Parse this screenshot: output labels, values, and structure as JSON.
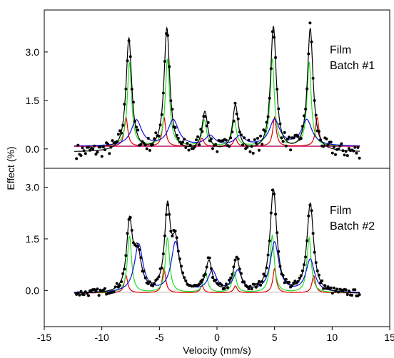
{
  "chart_data": {
    "type": "line",
    "x_axis": {
      "label": "Velocity (mm/s)",
      "lim": [
        -15,
        15
      ],
      "ticks": [
        -15,
        -10,
        -5,
        0,
        5,
        10,
        15
      ],
      "tick_labels": [
        "-15",
        "-10",
        "-5",
        "0",
        "5",
        "10",
        "15"
      ]
    },
    "y_axis": {
      "label": "Effect (%)",
      "ticks": [
        0.0,
        1.5,
        3.0
      ],
      "tick_labels": [
        "0.0",
        "1.5",
        "3.0"
      ]
    },
    "grid": false,
    "colors": {
      "data": "#000000",
      "fit": "#000000",
      "baseline": "#b4b4b4",
      "red": "#e00000",
      "green": "#22dd22",
      "blue": "#1010e0",
      "magenta": "#d0006a"
    },
    "panels": [
      {
        "label_lines": [
          "Film",
          "Batch #1"
        ],
        "ylim": [
          -0.6,
          4.3
        ],
        "baseline": 0.1,
        "components": [
          {
            "color": "red",
            "peaks": [
              {
                "x": -7.9,
                "a": 0.9,
                "w": 0.18
              },
              {
                "x": -4.6,
                "a": 0.9,
                "w": 0.18
              },
              {
                "x": -1.3,
                "a": 0.25,
                "w": 0.18
              },
              {
                "x": 1.6,
                "a": 0.25,
                "w": 0.18
              },
              {
                "x": 5.0,
                "a": 0.9,
                "w": 0.18
              },
              {
                "x": 8.7,
                "a": 0.9,
                "w": 0.18
              }
            ]
          },
          {
            "color": "green",
            "peaks": [
              {
                "x": -7.6,
                "a": 2.6,
                "w": 0.22
              },
              {
                "x": -4.3,
                "a": 2.7,
                "w": 0.22
              },
              {
                "x": -1.1,
                "a": 0.8,
                "w": 0.22
              },
              {
                "x": 1.5,
                "a": 0.8,
                "w": 0.22
              },
              {
                "x": 4.8,
                "a": 2.7,
                "w": 0.22
              },
              {
                "x": 8.0,
                "a": 2.6,
                "w": 0.22
              }
            ]
          },
          {
            "color": "blue",
            "peaks": [
              {
                "x": -7.0,
                "a": 0.8,
                "w": 0.55
              },
              {
                "x": -3.8,
                "a": 0.8,
                "w": 0.55
              },
              {
                "x": -0.6,
                "a": 0.3,
                "w": 0.5
              },
              {
                "x": 2.0,
                "a": 0.3,
                "w": 0.5
              },
              {
                "x": 5.0,
                "a": 0.8,
                "w": 0.55
              },
              {
                "x": 7.8,
                "a": 0.8,
                "w": 0.55
              }
            ]
          },
          {
            "color": "magenta",
            "peaks": [
              {
                "x": -12.0,
                "a": 0.0,
                "w": 1.0
              }
            ]
          }
        ],
        "fit_peaks": [
          {
            "x": -7.65,
            "a": 3.5,
            "w": 0.3
          },
          {
            "x": -4.35,
            "a": 3.8,
            "w": 0.3
          },
          {
            "x": -1.05,
            "a": 1.2,
            "w": 0.3
          },
          {
            "x": 1.6,
            "a": 1.4,
            "w": 0.3
          },
          {
            "x": 4.9,
            "a": 3.85,
            "w": 0.3
          },
          {
            "x": 8.1,
            "a": 3.8,
            "w": 0.3
          }
        ],
        "fit_offset": -0.2
      },
      {
        "label_lines": [
          "Film",
          "Batch #2"
        ],
        "ylim": [
          -1.05,
          3.55
        ],
        "baseline": -0.05,
        "components": [
          {
            "color": "red",
            "peaks": [
              {
                "x": -7.9,
                "a": 0.5,
                "w": 0.18
              },
              {
                "x": -4.6,
                "a": 0.7,
                "w": 0.18
              },
              {
                "x": -1.3,
                "a": 0.2,
                "w": 0.18
              },
              {
                "x": 1.6,
                "a": 0.2,
                "w": 0.18
              },
              {
                "x": 5.0,
                "a": 0.7,
                "w": 0.18
              },
              {
                "x": 8.4,
                "a": 0.5,
                "w": 0.18
              }
            ]
          },
          {
            "color": "green",
            "peaks": [
              {
                "x": -7.6,
                "a": 1.65,
                "w": 0.22
              },
              {
                "x": -4.3,
                "a": 1.6,
                "w": 0.22
              },
              {
                "x": -1.0,
                "a": 0.6,
                "w": 0.22
              },
              {
                "x": 1.5,
                "a": 0.6,
                "w": 0.22
              },
              {
                "x": 4.8,
                "a": 1.65,
                "w": 0.22
              },
              {
                "x": 8.0,
                "a": 1.6,
                "w": 0.22
              }
            ]
          },
          {
            "color": "blue",
            "peaks": [
              {
                "x": -6.8,
                "a": 1.4,
                "w": 0.45
              },
              {
                "x": -3.6,
                "a": 1.45,
                "w": 0.45
              },
              {
                "x": -0.4,
                "a": 0.6,
                "w": 0.45
              },
              {
                "x": 1.8,
                "a": 0.6,
                "w": 0.45
              },
              {
                "x": 5.0,
                "a": 1.45,
                "w": 0.45
              },
              {
                "x": 8.1,
                "a": 0.95,
                "w": 0.45
              }
            ]
          }
        ],
        "fit_peaks": [
          {
            "x": -7.6,
            "a": 1.95,
            "w": 0.3
          },
          {
            "x": -6.9,
            "a": 1.1,
            "w": 0.4
          },
          {
            "x": -4.3,
            "a": 2.3,
            "w": 0.3
          },
          {
            "x": -3.6,
            "a": 1.35,
            "w": 0.4
          },
          {
            "x": -0.7,
            "a": 0.9,
            "w": 0.35
          },
          {
            "x": 1.7,
            "a": 1.0,
            "w": 0.35
          },
          {
            "x": 4.9,
            "a": 3.0,
            "w": 0.35
          },
          {
            "x": 8.1,
            "a": 2.6,
            "w": 0.35
          }
        ],
        "fit_offset": -0.05
      }
    ]
  }
}
